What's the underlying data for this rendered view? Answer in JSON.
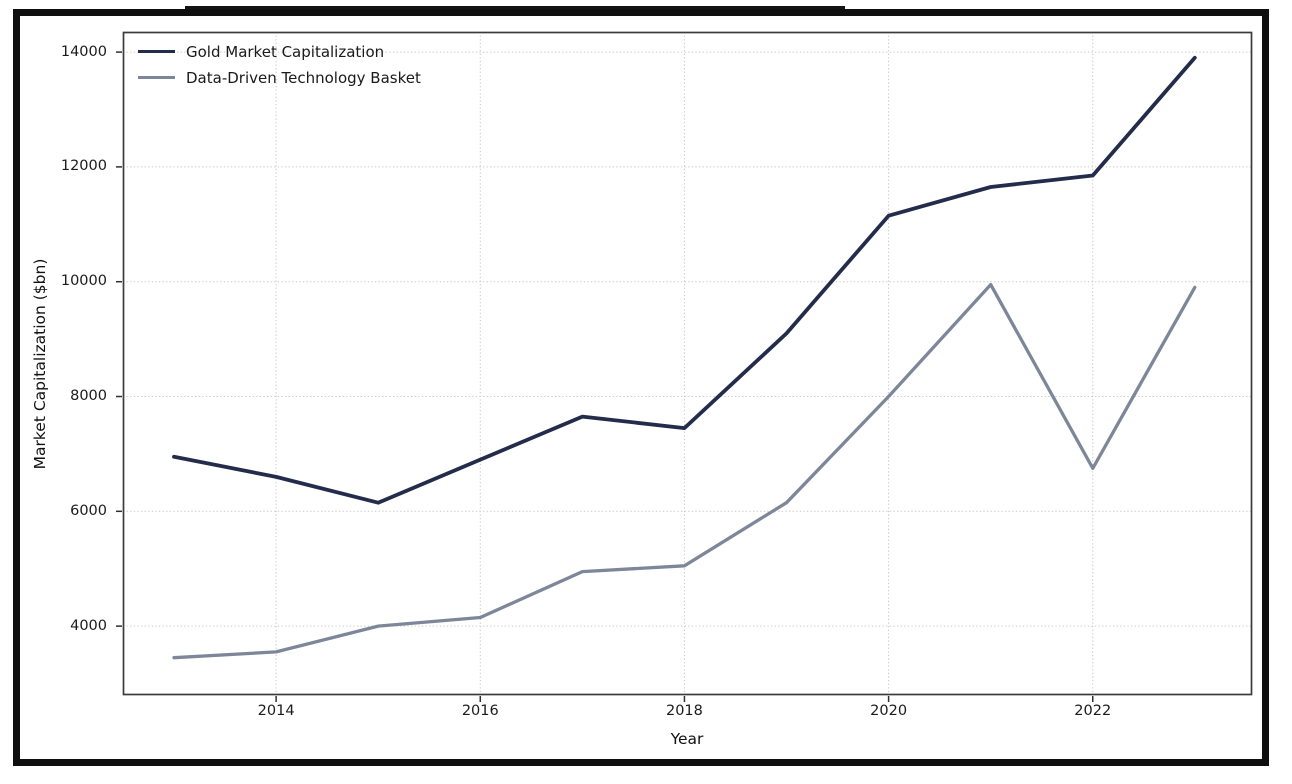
{
  "figure": {
    "background": "#ffffff",
    "frame_color": "#0f0f0f",
    "spine_color": "#3b3b3b",
    "grid_color": "#c7c7c7",
    "tick_color": "#2f2f2f",
    "tick_label_color": "#1b1b1b"
  },
  "chart_data": {
    "type": "line",
    "title": "",
    "xlabel": "Year",
    "ylabel": "Market Capitalization ($bn)",
    "x": [
      2013,
      2014,
      2015,
      2016,
      2017,
      2018,
      2019,
      2020,
      2021,
      2022,
      2023
    ],
    "series": [
      {
        "name": "Gold Market Capitalization",
        "color": "#232c4a",
        "line_width": 3.8,
        "values": [
          6950,
          6600,
          6150,
          6900,
          7650,
          7450,
          9100,
          11150,
          11650,
          11850,
          13900
        ]
      },
      {
        "name": "Data-Driven Technology Basket",
        "color": "#7d8799",
        "line_width": 3.3,
        "values": [
          3450,
          3550,
          4000,
          4150,
          4950,
          5050,
          6150,
          8000,
          9950,
          6750,
          9900
        ]
      }
    ],
    "xticks": [
      2014,
      2016,
      2018,
      2020,
      2022
    ],
    "yticks": [
      4000,
      6000,
      8000,
      10000,
      12000,
      14000
    ],
    "xlim": [
      2012.5,
      2023.56
    ],
    "ylim": [
      2800,
      14350
    ],
    "grid": true,
    "grid_style": "dotted",
    "legend_position": "upper left"
  }
}
